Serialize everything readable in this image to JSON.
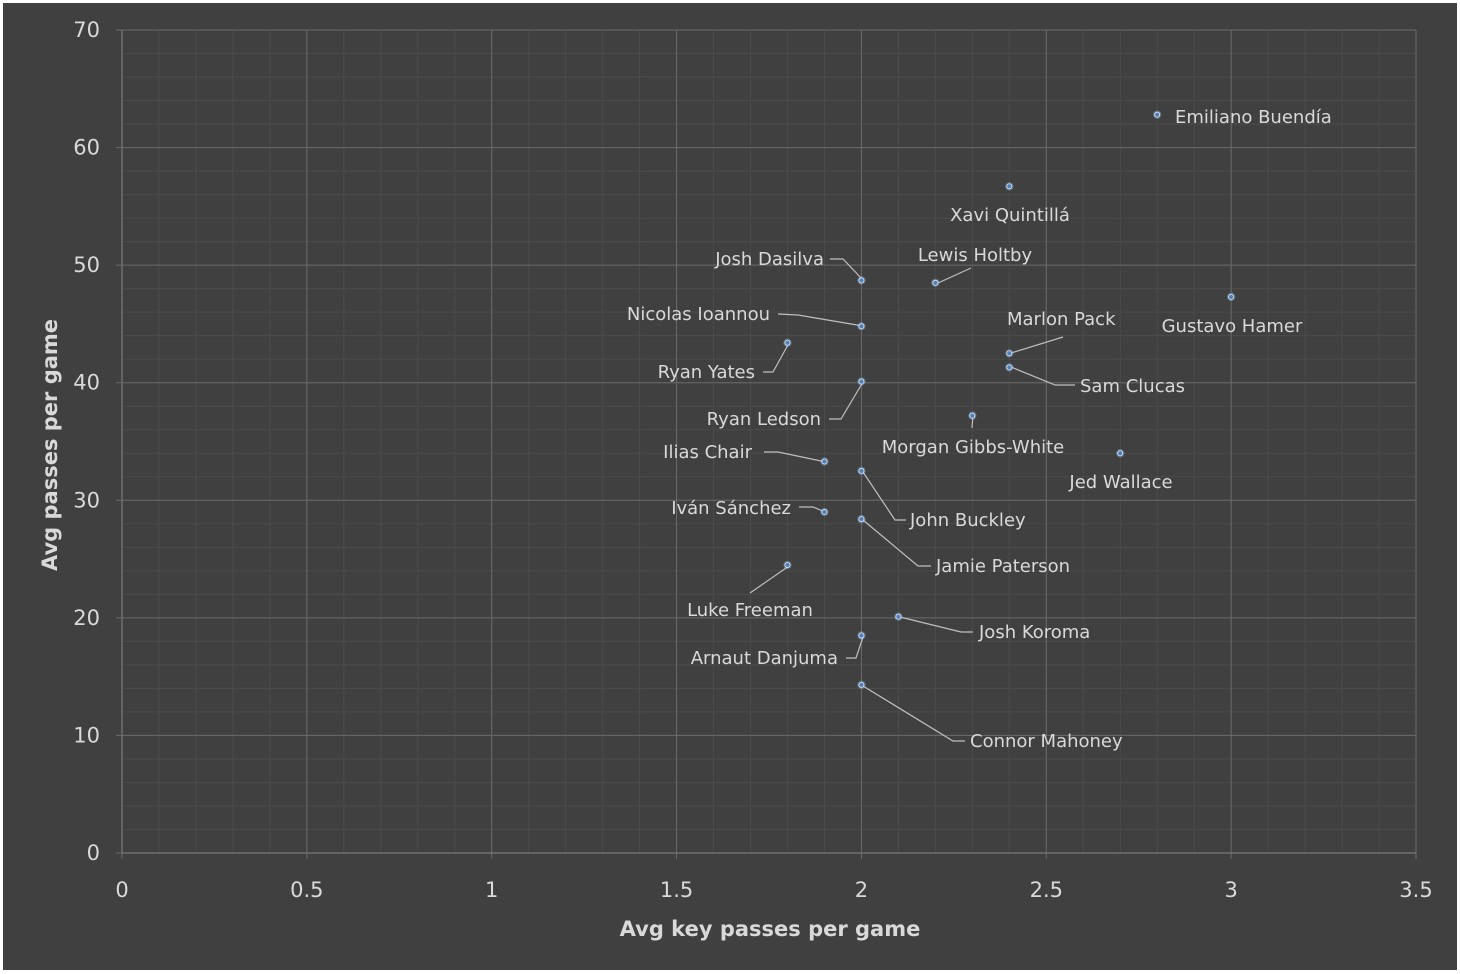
{
  "chart_data": {
    "type": "scatter",
    "xlabel": "Avg key passes per game",
    "ylabel": "Avg passes per game",
    "xlim": [
      0,
      3.5
    ],
    "ylim": [
      0,
      70
    ],
    "x_ticks": [
      "0",
      "0.5",
      "1",
      "1.5",
      "2",
      "2.5",
      "3",
      "3.5"
    ],
    "y_ticks": [
      "0",
      "10",
      "20",
      "30",
      "40",
      "50",
      "60",
      "70"
    ],
    "grid": true,
    "legend": "none",
    "colors": {
      "background": "#404040",
      "grid_major": "#6a6a6a",
      "grid_minor": "#4b4b4b",
      "marker": "#4f81bd",
      "text": "#d9d9d9"
    },
    "points": [
      {
        "name": "Emiliano Buendía",
        "x": 2.8,
        "y": 62.8
      },
      {
        "name": "Xavi Quintillá",
        "x": 2.4,
        "y": 56.7
      },
      {
        "name": "Josh Dasilva",
        "x": 2.0,
        "y": 48.7
      },
      {
        "name": "Lewis Holtby",
        "x": 2.2,
        "y": 48.5
      },
      {
        "name": "Gustavo Hamer",
        "x": 3.0,
        "y": 47.3
      },
      {
        "name": "Nicolas Ioannou",
        "x": 2.0,
        "y": 44.8
      },
      {
        "name": "Ryan Yates",
        "x": 1.8,
        "y": 43.4
      },
      {
        "name": "Marlon Pack",
        "x": 2.4,
        "y": 42.5
      },
      {
        "name": "Sam Clucas",
        "x": 2.4,
        "y": 41.3
      },
      {
        "name": "Ryan Ledson",
        "x": 2.0,
        "y": 40.1
      },
      {
        "name": "Morgan Gibbs-White",
        "x": 2.3,
        "y": 37.2
      },
      {
        "name": "Jed Wallace",
        "x": 2.7,
        "y": 34.0
      },
      {
        "name": "Ilias Chair",
        "x": 1.9,
        "y": 33.3
      },
      {
        "name": "John Buckley",
        "x": 2.0,
        "y": 32.5
      },
      {
        "name": "Iván Sánchez",
        "x": 1.9,
        "y": 29.0
      },
      {
        "name": "Jamie Paterson",
        "x": 2.0,
        "y": 28.4
      },
      {
        "name": "Luke Freeman",
        "x": 1.8,
        "y": 24.5
      },
      {
        "name": "Josh Koroma",
        "x": 2.1,
        "y": 20.1
      },
      {
        "name": "Arnaut Danjuma",
        "x": 2.0,
        "y": 18.5
      },
      {
        "name": "Connor Mahoney",
        "x": 2.0,
        "y": 14.3
      }
    ]
  }
}
